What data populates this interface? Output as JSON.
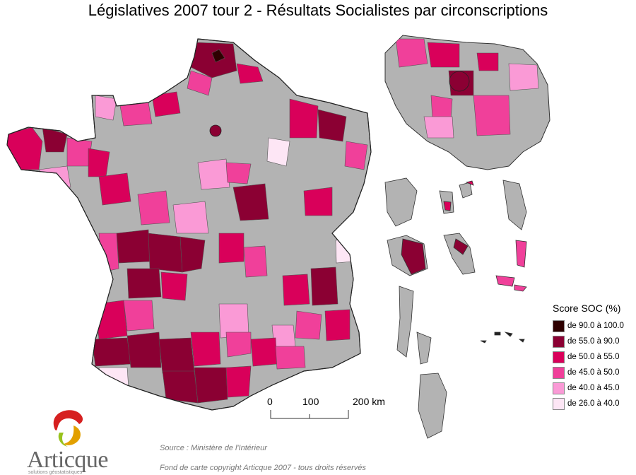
{
  "title": "Législatives 2007 tour 2 - Résultats Socialistes par circonscriptions",
  "legend": {
    "title": "Score SOC (%)",
    "classes": [
      {
        "label": "de 90.0 à 100.0",
        "color": "#2e0000"
      },
      {
        "label": "de 55.0 à 90.0",
        "color": "#8b0033"
      },
      {
        "label": "de 50.0 à 55.0",
        "color": "#d9005a"
      },
      {
        "label": "de 45.0 à 50.0",
        "color": "#f0409a"
      },
      {
        "label": "de 40.0 à 45.0",
        "color": "#fa9ad6"
      },
      {
        "label": "de 26.0 à 40.0",
        "color": "#fde6f5"
      }
    ],
    "no_data_color": "#b3b3b3"
  },
  "scale_bar": {
    "labels": [
      "0",
      "100",
      "200 km"
    ]
  },
  "source": "Source : Ministère de l'Intérieur",
  "copyright": "Fond de carte copyright Articque 2007 - tous droits réservés",
  "logo": {
    "name": "Articque",
    "tagline": "solutions géostatistiques"
  }
}
